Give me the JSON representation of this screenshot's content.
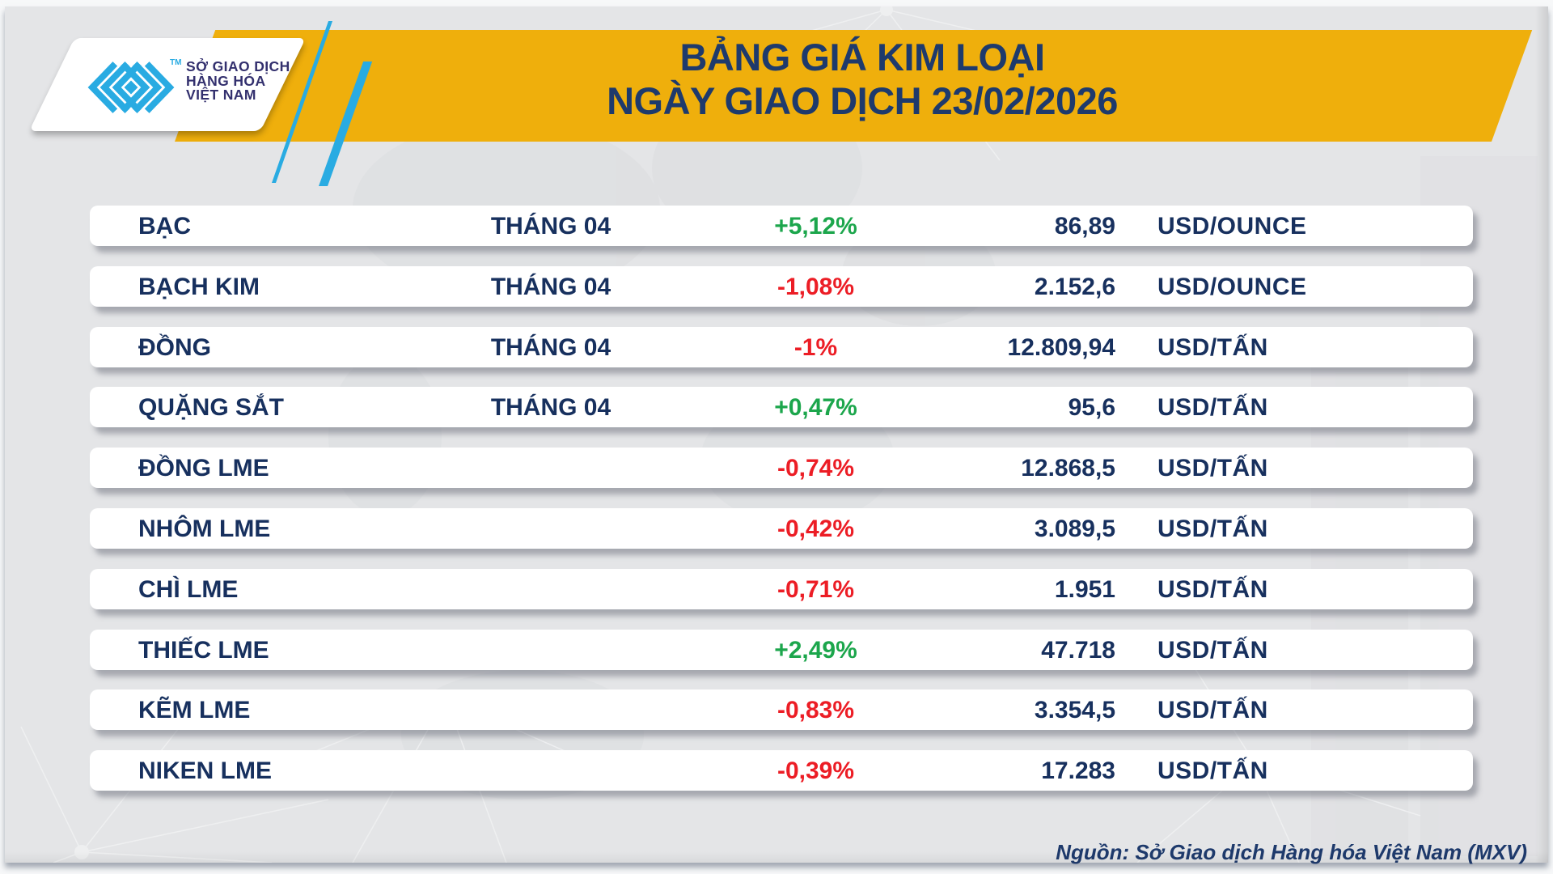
{
  "header": {
    "logo": {
      "org_lines": [
        "SỞ GIAO DỊCH",
        "HÀNG HÓA",
        "VIỆT NAM"
      ],
      "trademark": "TM"
    },
    "title_line1": "BẢNG GIÁ KIM LOẠI",
    "title_line2": "NGÀY GIAO DỊCH 23/02/2026"
  },
  "table": {
    "rows": [
      {
        "name": "BẠC",
        "month": "THÁNG 04",
        "change": "+5,12%",
        "direction": "up",
        "price": "86,89",
        "unit": "USD/OUNCE"
      },
      {
        "name": "BẠCH KIM",
        "month": "THÁNG 04",
        "change": "-1,08%",
        "direction": "down",
        "price": "2.152,6",
        "unit": "USD/OUNCE"
      },
      {
        "name": "ĐỒNG",
        "month": "THÁNG 04",
        "change": "-1%",
        "direction": "down",
        "price": "12.809,94",
        "unit": "USD/TẤN"
      },
      {
        "name": "QUẶNG SẮT",
        "month": "THÁNG 04",
        "change": "+0,47%",
        "direction": "up",
        "price": "95,6",
        "unit": "USD/TẤN"
      },
      {
        "name": "ĐỒNG LME",
        "month": "",
        "change": "-0,74%",
        "direction": "down",
        "price": "12.868,5",
        "unit": "USD/TẤN"
      },
      {
        "name": "NHÔM LME",
        "month": "",
        "change": "-0,42%",
        "direction": "down",
        "price": "3.089,5",
        "unit": "USD/TẤN"
      },
      {
        "name": "CHÌ LME",
        "month": "",
        "change": "-0,71%",
        "direction": "down",
        "price": "1.951",
        "unit": "USD/TẤN"
      },
      {
        "name": "THIẾC LME",
        "month": "",
        "change": "+2,49%",
        "direction": "up",
        "price": "47.718",
        "unit": "USD/TẤN"
      },
      {
        "name": "KẼM LME",
        "month": "",
        "change": "-0,83%",
        "direction": "down",
        "price": "3.354,5",
        "unit": "USD/TẤN"
      },
      {
        "name": "NIKEN LME",
        "month": "",
        "change": "-0,39%",
        "direction": "down",
        "price": "17.283",
        "unit": "USD/TẤN"
      }
    ]
  },
  "footer": {
    "source": "Nguồn: Sở Giao dịch Hàng hóa Việt Nam (MXV)"
  },
  "colors": {
    "accent_yellow": "#EFAF0C",
    "title_navy": "#1E3A6C",
    "table_navy": "#17305E",
    "up_green": "#1CA64C",
    "down_red": "#EC1D25",
    "logo_cyan": "#29ABE2",
    "logo_indigo": "#33306E"
  },
  "chart_data": {
    "type": "table",
    "title": "BẢNG GIÁ KIM LOẠI — NGÀY GIAO DỊCH 23/02/2026",
    "rows": [
      {
        "name": "BẠC",
        "month": "THÁNG 04",
        "change_pct": 5.12,
        "price": 86.89,
        "unit": "USD/OUNCE"
      },
      {
        "name": "BẠCH KIM",
        "month": "THÁNG 04",
        "change_pct": -1.08,
        "price": 2152.6,
        "unit": "USD/OUNCE"
      },
      {
        "name": "ĐỒNG",
        "month": "THÁNG 04",
        "change_pct": -1.0,
        "price": 12809.94,
        "unit": "USD/TẤN"
      },
      {
        "name": "QUẶNG SẮT",
        "month": "THÁNG 04",
        "change_pct": 0.47,
        "price": 95.6,
        "unit": "USD/TẤN"
      },
      {
        "name": "ĐỒNG LME",
        "month": null,
        "change_pct": -0.74,
        "price": 12868.5,
        "unit": "USD/TẤN"
      },
      {
        "name": "NHÔM LME",
        "month": null,
        "change_pct": -0.42,
        "price": 3089.5,
        "unit": "USD/TẤN"
      },
      {
        "name": "CHÌ LME",
        "month": null,
        "change_pct": -0.71,
        "price": 1951,
        "unit": "USD/TẤN"
      },
      {
        "name": "THIẾC LME",
        "month": null,
        "change_pct": 2.49,
        "price": 47718,
        "unit": "USD/TẤN"
      },
      {
        "name": "KẼM LME",
        "month": null,
        "change_pct": -0.83,
        "price": 3354.5,
        "unit": "USD/TẤN"
      },
      {
        "name": "NIKEN LME",
        "month": null,
        "change_pct": -0.39,
        "price": 17283,
        "unit": "USD/TẤN"
      }
    ]
  }
}
